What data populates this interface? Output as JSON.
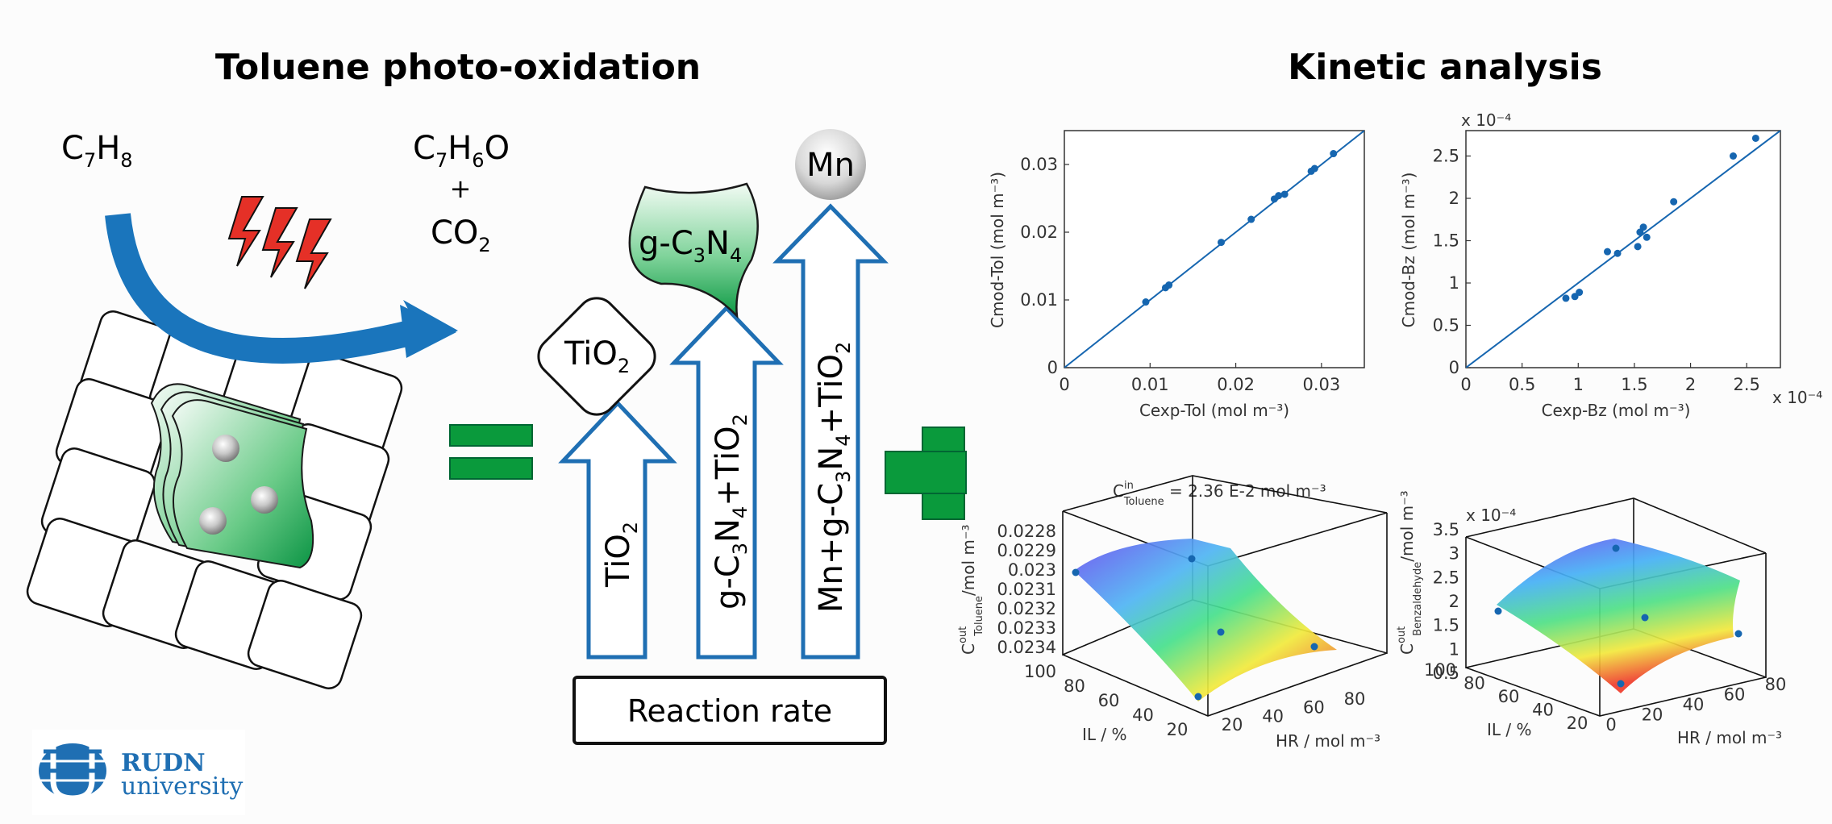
{
  "left_title": "Toluene photo-oxidation",
  "right_title": "Kinetic analysis",
  "reactant": {
    "main": "C",
    "sub1": "7",
    "mid": "H",
    "sub2": "8"
  },
  "products": {
    "p1_main": "C",
    "p1_s1": "7",
    "p1_mid": "H",
    "p1_s2": "6",
    "p1_end": "O",
    "plus": "+",
    "p2_main": "CO",
    "p2_s": "2"
  },
  "catalysts": {
    "tio2_box": {
      "main": "TiO",
      "sub": "2"
    },
    "gcn_box": {
      "a": "g-C",
      "s1": "3",
      "b": "N",
      "s2": "4"
    },
    "mn_ball": "Mn",
    "arrow1": {
      "a": "TiO",
      "s1": "2"
    },
    "arrow2": {
      "a": "g-C",
      "s1": "3",
      "b": "N",
      "s2": "4",
      "c": "+TiO",
      "s3": "2"
    },
    "arrow3": {
      "a": "Mn+g-C",
      "s1": "3",
      "b": "N",
      "s2": "4",
      "c": "+TiO",
      "s3": "2"
    }
  },
  "reaction_rate": "Reaction rate",
  "logo": {
    "line1": "RUDN",
    "line2": "university"
  },
  "colors": {
    "blue": "#1a75bc",
    "green": "#0a9a3c",
    "red": "#e53027",
    "arrow_outline": "#1f6fb3",
    "point": "#1666b0"
  },
  "chart_data": [
    {
      "type": "scatter",
      "ylabel": "Cmod-Tol (mol m⁻³)",
      "xlabel": "Cexp-Tol (mol m⁻³)",
      "xlim": [
        0,
        0.035
      ],
      "ylim": [
        0,
        0.035
      ],
      "xticks": [
        "0",
        "0.01",
        "0.02",
        "0.03"
      ],
      "yticks": [
        "0",
        "0.01",
        "0.02",
        "0.03"
      ],
      "diagonal": true,
      "x": [
        0.0095,
        0.0118,
        0.0122,
        0.0183,
        0.0218,
        0.0245,
        0.025,
        0.0257,
        0.0288,
        0.0292,
        0.0314
      ],
      "y": [
        0.0097,
        0.0118,
        0.0122,
        0.0185,
        0.0219,
        0.0249,
        0.0254,
        0.0256,
        0.029,
        0.0294,
        0.0316
      ]
    },
    {
      "type": "scatter",
      "ylabel": "Cmod-Bz (mol m⁻³)",
      "xlabel": "Cexp-Bz (mol m⁻³)",
      "xlim": [
        0,
        2.8
      ],
      "ylim": [
        0,
        2.8
      ],
      "x_exponent": "x 10⁻⁴",
      "y_exponent": "x 10⁻⁴",
      "xticks": [
        "0",
        "0.5",
        "1",
        "1.5",
        "2",
        "2.5"
      ],
      "yticks": [
        "0",
        "0.5",
        "1",
        "1.5",
        "2",
        "2.5"
      ],
      "diagonal": true,
      "x": [
        0.89,
        0.97,
        1.01,
        1.26,
        1.35,
        1.53,
        1.55,
        1.58,
        1.61,
        1.85,
        2.38,
        2.58
      ],
      "y": [
        0.82,
        0.84,
        0.89,
        1.37,
        1.35,
        1.43,
        1.6,
        1.66,
        1.54,
        1.96,
        2.5,
        2.71
      ]
    },
    {
      "type": "surface3d",
      "title_main": "C",
      "title_sup": "in",
      "title_sub": "Toluene",
      "title_rest": " = 2.36 E-2 mol m⁻³",
      "zlabel_main": "C",
      "zlabel_sup": "out",
      "zlabel_sub": "Toluene",
      "zlabel_rest": "/mol m⁻³",
      "xlabel": "HR / mol m⁻³",
      "ylabel": "IL / %",
      "zticks": [
        "0.0228",
        "0.0229",
        "0.023",
        "0.0231",
        "0.0232",
        "0.0233",
        "0.0234"
      ],
      "xticks": [
        "20",
        "40",
        "60",
        "80"
      ],
      "yticks": [
        "100",
        "80",
        "60",
        "40",
        "20"
      ]
    },
    {
      "type": "surface3d",
      "zlabel_main": "C",
      "zlabel_sup": "out",
      "zlabel_sub": "Benzaldehyde",
      "zlabel_rest": "/mol m⁻³",
      "z_exponent": "x 10⁻⁴",
      "xlabel": "HR / mol m⁻³",
      "ylabel": "IL / %",
      "zticks": [
        "3.5",
        "3",
        "2.5",
        "2",
        "1.5",
        "1",
        "0.5"
      ],
      "xticks": [
        "0",
        "20",
        "40",
        "60",
        "80"
      ],
      "yticks": [
        "100",
        "80",
        "60",
        "40",
        "20"
      ]
    }
  ]
}
